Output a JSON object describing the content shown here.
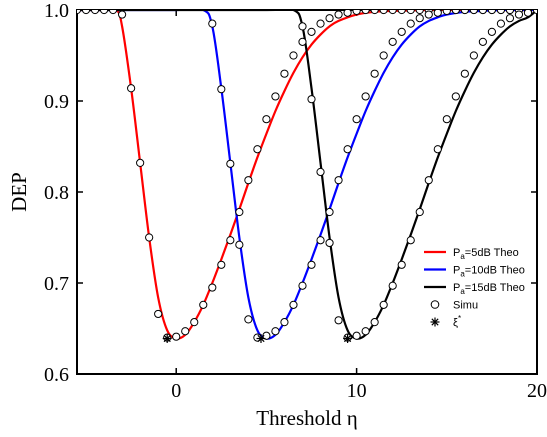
{
  "chart_data": {
    "type": "line",
    "xlabel": "Threshold η",
    "ylabel": "DEP",
    "xlim": [
      -5.5,
      20
    ],
    "ylim": [
      0.6,
      1.0
    ],
    "x_ticks": [
      0,
      10,
      20
    ],
    "x_tick_labels": [
      "0",
      "10",
      "20"
    ],
    "y_ticks": [
      0.6,
      0.7,
      0.8,
      0.9,
      1.0
    ],
    "y_tick_labels": [
      "0.6",
      "0.7",
      "0.8",
      "0.9",
      "1.0"
    ],
    "legend_position": "right",
    "legend": [
      {
        "prefix": "P",
        "sub": "a",
        "suffix": "=5dB Theo",
        "color": "#ff0000",
        "kind": "line"
      },
      {
        "prefix": "P",
        "sub": "a",
        "suffix": "=10dB Theo",
        "color": "#0000ff",
        "kind": "line"
      },
      {
        "prefix": "P",
        "sub": "a",
        "suffix": "=15dB Theo",
        "color": "#000000",
        "kind": "line"
      },
      {
        "prefix": "Simu",
        "sub": "",
        "suffix": "",
        "color": "#000000",
        "kind": "circle"
      },
      {
        "prefix": "ξ",
        "sup": "*",
        "suffix": "",
        "color": "#000000",
        "kind": "star"
      }
    ],
    "series": [
      {
        "color": "#ff0000",
        "kind": "line",
        "x": [
          -5.5,
          -4,
          -3.3,
          -3,
          -2.5,
          -2,
          -1.5,
          -1,
          -0.5,
          0,
          0.5,
          1,
          1.5,
          2,
          2.5,
          3,
          3.5,
          4,
          4.5,
          5,
          5.5,
          6,
          6.5,
          7,
          7.5,
          8,
          8.5,
          9,
          10,
          11,
          12,
          14,
          16,
          18,
          20
        ],
        "y": [
          1.0,
          1.0,
          1.0,
          0.982,
          0.914,
          0.832,
          0.75,
          0.684,
          0.648,
          0.639,
          0.643,
          0.657,
          0.676,
          0.7,
          0.726,
          0.753,
          0.781,
          0.81,
          0.838,
          0.864,
          0.889,
          0.911,
          0.931,
          0.948,
          0.962,
          0.973,
          0.982,
          0.988,
          0.995,
          0.998,
          0.999,
          1.0,
          1.0,
          1.0,
          1.0
        ]
      },
      {
        "color": "#0000ff",
        "kind": "line",
        "x": [
          -5.5,
          0,
          1.5,
          2,
          2.5,
          3,
          3.5,
          4,
          4.5,
          5,
          5.5,
          6,
          6.5,
          7,
          7.5,
          8,
          8.5,
          9,
          9.5,
          10,
          10.5,
          11,
          11.5,
          12,
          12.5,
          13,
          13.5,
          14,
          14.5,
          15,
          16,
          17,
          18,
          19,
          20
        ],
        "y": [
          1.0,
          1.0,
          1.0,
          0.982,
          0.914,
          0.832,
          0.75,
          0.684,
          0.648,
          0.639,
          0.643,
          0.657,
          0.676,
          0.7,
          0.726,
          0.753,
          0.781,
          0.81,
          0.838,
          0.864,
          0.889,
          0.911,
          0.931,
          0.948,
          0.962,
          0.973,
          0.982,
          0.988,
          0.992,
          0.995,
          0.998,
          0.999,
          1.0,
          1.0,
          1.0
        ]
      },
      {
        "color": "#000000",
        "kind": "line",
        "x": [
          -5.5,
          5,
          6.5,
          7,
          7.5,
          8,
          8.5,
          9,
          9.5,
          10,
          10.5,
          11,
          11.5,
          12,
          12.5,
          13,
          13.5,
          14,
          14.5,
          15,
          15.5,
          16,
          16.5,
          17,
          17.5,
          18,
          18.5,
          19,
          19.5,
          20
        ],
        "y": [
          1.0,
          1.0,
          1.0,
          0.982,
          0.914,
          0.832,
          0.75,
          0.684,
          0.648,
          0.639,
          0.643,
          0.657,
          0.676,
          0.7,
          0.726,
          0.753,
          0.781,
          0.81,
          0.838,
          0.864,
          0.889,
          0.911,
          0.931,
          0.948,
          0.962,
          0.973,
          0.982,
          0.988,
          0.992,
          1.0
        ]
      }
    ],
    "simu_markers": {
      "x": [
        -5.5,
        -5,
        -4.5,
        -4,
        -3.5,
        -3,
        -2.5,
        -2,
        -1.5,
        -1,
        -0.5,
        0,
        0.5,
        1,
        1.5,
        2,
        2.5,
        3,
        3.5,
        4,
        4.5,
        5,
        5.5,
        6,
        6.5,
        7,
        7.5,
        8,
        8.5,
        9,
        9.5,
        10,
        10.5,
        11,
        11.5,
        12,
        12.5,
        13,
        13.5,
        14,
        14.5,
        15,
        15.5,
        16,
        16.5,
        17,
        17.5,
        18,
        18.5,
        19,
        19.5,
        20
      ],
      "red_y": [
        1.0,
        1.0,
        1.0,
        1.0,
        1.0,
        0.995,
        0.914,
        0.832,
        0.75,
        0.666,
        0.64,
        0.641,
        0.647,
        0.657,
        0.676,
        0.695,
        0.72,
        0.747,
        0.778,
        0.813,
        0.847,
        0.88,
        0.905,
        0.93,
        0.95,
        0.965,
        0.976,
        0.985,
        0.991,
        0.995,
        0.997,
        0.999,
        1.0,
        1.0,
        1.0,
        1.0,
        1.0,
        1.0,
        1.0,
        1.0,
        1.0,
        1.0,
        1.0,
        1.0,
        1.0,
        1.0,
        1.0,
        1.0,
        1.0,
        1.0,
        1.0,
        1.0
      ],
      "blue_y_from_2": [
        0.985,
        0.913,
        0.831,
        0.742,
        0.66,
        0.64,
        0.642,
        0.647,
        0.657,
        0.676,
        0.697,
        0.72,
        0.747,
        0.778,
        0.813,
        0.847,
        0.88,
        0.905,
        0.93,
        0.95,
        0.965,
        0.976,
        0.985,
        0.991,
        0.995,
        0.997,
        0.999,
        1.0,
        1.0,
        1.0,
        1.0,
        1.0,
        1.0,
        1.0,
        1.0,
        1.0
      ],
      "black_y_from_7": [
        0.982,
        0.902,
        0.822,
        0.744,
        0.659,
        0.64,
        0.642,
        0.647,
        0.657,
        0.676,
        0.697,
        0.72,
        0.747,
        0.778,
        0.813,
        0.847,
        0.88,
        0.905,
        0.93,
        0.95,
        0.965,
        0.976,
        0.985,
        0.991,
        0.995,
        0.997
      ]
    },
    "xi_star_points": [
      {
        "x": -0.5,
        "y": 0.639
      },
      {
        "x": 4.7,
        "y": 0.639
      },
      {
        "x": 9.5,
        "y": 0.639
      }
    ]
  }
}
